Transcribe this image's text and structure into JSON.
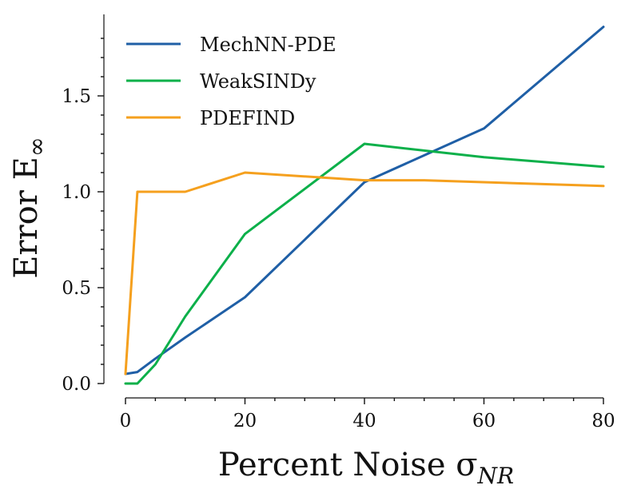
{
  "chart_data": {
    "type": "line",
    "xlabel": "Percent Noise σ",
    "xlabel_sub": "NR",
    "ylabel": "Error E",
    "ylabel_sub": "∞",
    "xlim": [
      0,
      80
    ],
    "ylim": [
      0,
      1.8
    ],
    "xticks": [
      0,
      20,
      40,
      60,
      80
    ],
    "xtick_labels": [
      "0",
      "20",
      "40",
      "60",
      "80"
    ],
    "yticks": [
      0.0,
      0.5,
      1.0,
      1.5
    ],
    "ytick_labels": [
      "0.0",
      "0.5",
      "1.0",
      "1.5"
    ],
    "grid": false,
    "legend_position": "top-left",
    "series": [
      {
        "name": "MechNN-PDE",
        "color": "#1f5fa6",
        "x": [
          0,
          2,
          5,
          10,
          20,
          40,
          50,
          60,
          80
        ],
        "y": [
          0.05,
          0.06,
          0.13,
          0.24,
          0.45,
          1.05,
          1.19,
          1.33,
          1.86
        ]
      },
      {
        "name": "WeakSINDy",
        "color": "#0cb04a",
        "x": [
          0,
          2,
          5,
          10,
          20,
          40,
          60,
          80
        ],
        "y": [
          0.0,
          0.0,
          0.1,
          0.35,
          0.78,
          1.25,
          1.18,
          1.13
        ]
      },
      {
        "name": "PDEFIND",
        "color": "#f5a01e",
        "x": [
          0,
          2,
          10,
          20,
          40,
          50,
          80
        ],
        "y": [
          0.05,
          1.0,
          1.0,
          1.1,
          1.06,
          1.06,
          1.03
        ]
      }
    ]
  }
}
